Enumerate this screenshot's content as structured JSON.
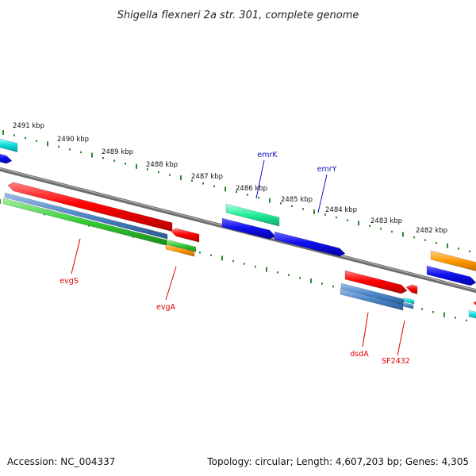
{
  "title": "Shigella flexneri 2a str. 301, complete genome",
  "footer": {
    "accession": "Accession: NC_004337",
    "summary": "Topology: circular; Length: 4,607,203 bp; Genes: 4,305"
  },
  "ruler_labels": [
    "2491 kbp",
    "2490 kbp",
    "2489 kbp",
    "2488 kbp",
    "2487 kbp",
    "2486 kbp",
    "2485 kbp",
    "2484 kbp",
    "2483 kbp",
    "2482 kbp"
  ],
  "gene_labels": [
    {
      "name": "evgS",
      "color": "#e00000"
    },
    {
      "name": "evgA",
      "color": "#e00000"
    },
    {
      "name": "emrK",
      "color": "#1010c0"
    },
    {
      "name": "emrY",
      "color": "#1010c0"
    },
    {
      "name": "dsdA",
      "color": "#e00000"
    },
    {
      "name": "SF2432",
      "color": "#e00000"
    }
  ],
  "colors": {
    "red": "#ff0000",
    "blue": "#1a1aff",
    "steel": "#4a86c8",
    "green": "#33cc33",
    "aqua": "#22ee99",
    "cyan": "#11dddd",
    "orange": "#ff9900",
    "backbone": "#808080",
    "ticks": "#1a7a1a"
  }
}
